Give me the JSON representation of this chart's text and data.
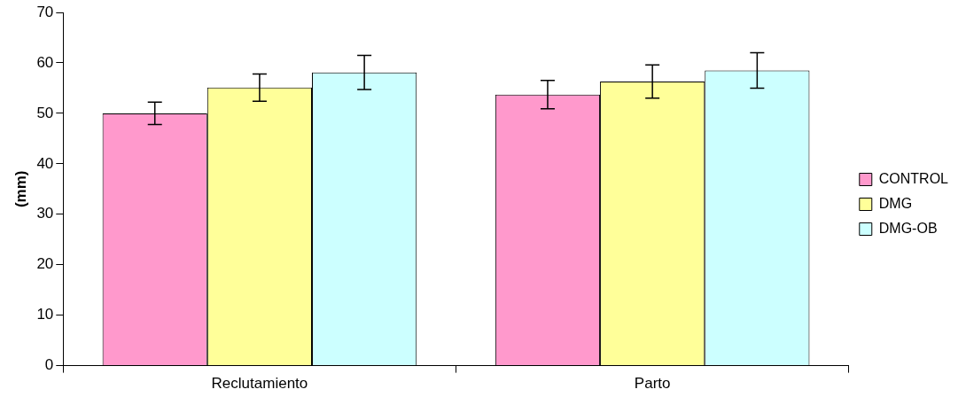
{
  "chart_data": {
    "type": "bar",
    "ylabel": "(mm)",
    "categories": [
      "Reclutamiento",
      "Parto"
    ],
    "series": [
      {
        "name": "CONTROL",
        "color": "#ff99cc",
        "values": [
          50.0,
          53.7
        ],
        "errors": [
          2.2,
          2.8
        ]
      },
      {
        "name": "DMG",
        "color": "#ffff99",
        "values": [
          55.1,
          56.3
        ],
        "errors": [
          2.7,
          3.3
        ]
      },
      {
        "name": "DMG-OB",
        "color": "#ccffff",
        "values": [
          58.1,
          58.5
        ],
        "errors": [
          3.4,
          3.5
        ]
      }
    ],
    "ylim": [
      0,
      70
    ],
    "yticks": [
      0,
      10,
      20,
      30,
      40,
      50,
      60,
      70
    ],
    "grid": false,
    "legend": "right"
  }
}
